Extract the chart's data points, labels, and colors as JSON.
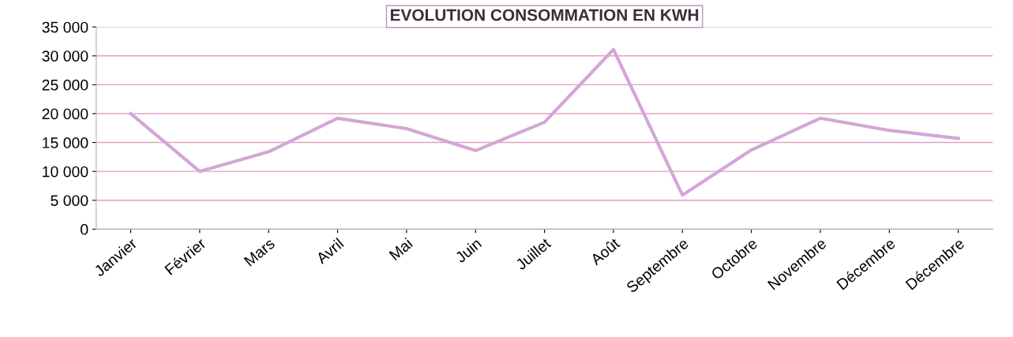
{
  "chart_data": {
    "type": "line",
    "title": "EVOLUTION CONSOMMATION EN KWH",
    "categories": [
      "Janvier",
      "Février",
      "Mars",
      "Avril",
      "Mai",
      "Juin",
      "Juillet",
      "Août",
      "Septembre",
      "Octobre",
      "Novembre",
      "Décembre",
      "Décembre"
    ],
    "series": [
      {
        "color": "#d4a6d6",
        "values": [
          20000,
          10000,
          13400,
          19200,
          17400,
          13600,
          18500,
          31100,
          5900,
          13700,
          19200,
          17100,
          15700
        ]
      }
    ],
    "ylim": [
      0,
      35000
    ],
    "yticks": [
      {
        "value": 0,
        "label": "0"
      },
      {
        "value": 5000,
        "label": "5 000"
      },
      {
        "value": 10000,
        "label": "10 000"
      },
      {
        "value": 15000,
        "label": "15 000"
      },
      {
        "value": 20000,
        "label": "20 000"
      },
      {
        "value": 25000,
        "label": "25 000"
      },
      {
        "value": 30000,
        "label": "30 000"
      },
      {
        "value": 35000,
        "label": "35 000"
      }
    ],
    "grid": "y",
    "marker": "none",
    "line_style": "solid"
  }
}
